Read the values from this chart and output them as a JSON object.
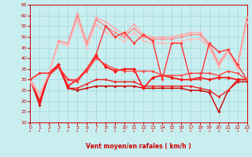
{
  "x_range": [
    0,
    23
  ],
  "y_range": [
    10,
    65
  ],
  "y_ticks": [
    10,
    15,
    20,
    25,
    30,
    35,
    40,
    45,
    50,
    55,
    60,
    65
  ],
  "x_ticks": [
    0,
    1,
    2,
    3,
    4,
    5,
    6,
    7,
    8,
    9,
    10,
    11,
    12,
    13,
    14,
    15,
    16,
    17,
    18,
    19,
    20,
    21,
    22,
    23
  ],
  "xlabel": "Vent moyen/en rafales ( km/h )",
  "bg_color": "#c8eef0",
  "grid_color": "#a0d8d8",
  "series": [
    {
      "comment": "dark red - line going down from 30 to 15 then back up",
      "color": "#cc0000",
      "lw": 1.0,
      "marker": "D",
      "ms": 2.0,
      "x": [
        0,
        1,
        2,
        3,
        4,
        5,
        6,
        7,
        8,
        9,
        10,
        11,
        12,
        13,
        14,
        15,
        16,
        17,
        18,
        19,
        20,
        21,
        22,
        23
      ],
      "y": [
        30,
        18,
        33,
        37,
        26,
        25,
        26,
        27,
        27,
        27,
        27,
        27,
        26,
        26,
        26,
        26,
        26,
        25,
        25,
        24,
        15,
        25,
        29,
        29
      ]
    },
    {
      "comment": "medium red - slightly above previous",
      "color": "#ee2222",
      "lw": 1.0,
      "marker": "D",
      "ms": 2.0,
      "x": [
        0,
        1,
        2,
        3,
        4,
        5,
        6,
        7,
        8,
        9,
        10,
        11,
        12,
        13,
        14,
        15,
        16,
        17,
        18,
        19,
        20,
        21,
        22,
        23
      ],
      "y": [
        30,
        19,
        32,
        36,
        26,
        26,
        28,
        30,
        30,
        29,
        29,
        29,
        27,
        27,
        27,
        27,
        27,
        27,
        26,
        25,
        22,
        25,
        30,
        30
      ]
    },
    {
      "comment": "bright red medium - fluctuating around 30-35",
      "color": "#ff1111",
      "lw": 1.2,
      "marker": "D",
      "ms": 2.5,
      "x": [
        0,
        1,
        2,
        3,
        4,
        5,
        6,
        7,
        8,
        9,
        10,
        11,
        12,
        13,
        14,
        15,
        16,
        17,
        18,
        19,
        20,
        21,
        22,
        23
      ],
      "y": [
        30,
        20,
        33,
        37,
        27,
        30,
        35,
        41,
        36,
        34,
        35,
        35,
        26,
        31,
        32,
        31,
        30,
        30,
        31,
        30,
        31,
        31,
        30,
        30
      ]
    },
    {
      "comment": "red with more variance - spiky",
      "color": "#ff4444",
      "lw": 1.0,
      "marker": "D",
      "ms": 2.0,
      "x": [
        0,
        1,
        2,
        3,
        4,
        5,
        6,
        7,
        8,
        9,
        10,
        11,
        12,
        13,
        14,
        15,
        16,
        17,
        18,
        19,
        20,
        21,
        22,
        23
      ],
      "y": [
        30,
        33,
        33,
        36,
        30,
        30,
        34,
        40,
        37,
        35,
        34,
        34,
        34,
        34,
        32,
        32,
        32,
        33,
        33,
        33,
        32,
        34,
        33,
        30
      ]
    },
    {
      "comment": "light pink - upper band, trending up",
      "color": "#ffaaaa",
      "lw": 1.0,
      "marker": "D",
      "ms": 2.0,
      "x": [
        0,
        1,
        2,
        3,
        4,
        5,
        6,
        7,
        8,
        9,
        10,
        11,
        12,
        13,
        14,
        15,
        16,
        17,
        18,
        19,
        20,
        21,
        22,
        23
      ],
      "y": [
        30,
        23,
        33,
        48,
        47,
        61,
        47,
        59,
        57,
        54,
        51,
        56,
        51,
        50,
        50,
        50,
        51,
        52,
        52,
        47,
        38,
        44,
        37,
        59
      ]
    },
    {
      "comment": "medium pink - slightly below light pink",
      "color": "#ff8888",
      "lw": 1.0,
      "marker": "D",
      "ms": 2.0,
      "x": [
        0,
        1,
        2,
        3,
        4,
        5,
        6,
        7,
        8,
        9,
        10,
        11,
        12,
        13,
        14,
        15,
        16,
        17,
        18,
        19,
        20,
        21,
        22,
        23
      ],
      "y": [
        30,
        23,
        33,
        48,
        47,
        60,
        47,
        58,
        55,
        52,
        50,
        54,
        50,
        49,
        49,
        49,
        50,
        51,
        51,
        46,
        37,
        43,
        36,
        59
      ]
    },
    {
      "comment": "salmon pink - spiky middle values",
      "color": "#ffbbbb",
      "lw": 1.0,
      "marker": "D",
      "ms": 2.0,
      "x": [
        0,
        1,
        2,
        3,
        4,
        5,
        6,
        7,
        8,
        9,
        10,
        11,
        12,
        13,
        14,
        15,
        16,
        17,
        18,
        19,
        20,
        21,
        22,
        23
      ],
      "y": [
        29,
        23,
        33,
        47,
        46,
        58,
        45,
        56,
        52,
        50,
        48,
        52,
        48,
        47,
        47,
        47,
        48,
        49,
        49,
        45,
        36,
        43,
        35,
        57
      ]
    },
    {
      "comment": "medium red spiky - high variance in middle",
      "color": "#ff3333",
      "lw": 1.0,
      "marker": "D",
      "ms": 2.0,
      "x": [
        0,
        1,
        2,
        3,
        4,
        5,
        6,
        7,
        8,
        9,
        10,
        11,
        12,
        13,
        14,
        15,
        16,
        17,
        18,
        19,
        20,
        21,
        22,
        23
      ],
      "y": [
        30,
        33,
        33,
        36,
        30,
        29,
        35,
        42,
        55,
        50,
        52,
        47,
        51,
        48,
        30,
        47,
        47,
        30,
        30,
        47,
        43,
        44,
        37,
        30
      ]
    }
  ],
  "title_color": "#cc0000",
  "label_color": "#cc0000",
  "tick_color": "#cc0000"
}
